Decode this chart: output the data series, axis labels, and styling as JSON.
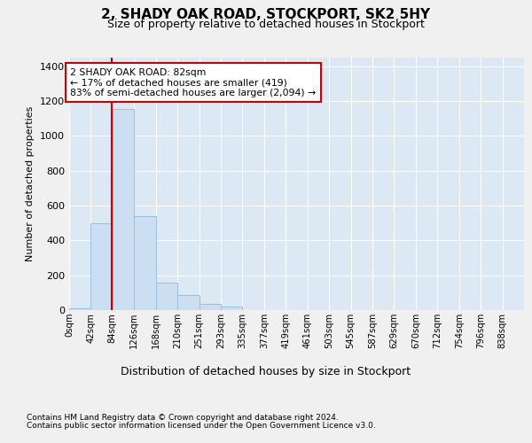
{
  "title1": "2, SHADY OAK ROAD, STOCKPORT, SK2 5HY",
  "title2": "Size of property relative to detached houses in Stockport",
  "xlabel": "Distribution of detached houses by size in Stockport",
  "ylabel": "Number of detached properties",
  "footnote1": "Contains HM Land Registry data © Crown copyright and database right 2024.",
  "footnote2": "Contains public sector information licensed under the Open Government Licence v3.0.",
  "bar_labels": [
    "0sqm",
    "42sqm",
    "84sqm",
    "126sqm",
    "168sqm",
    "210sqm",
    "251sqm",
    "293sqm",
    "335sqm",
    "377sqm",
    "419sqm",
    "461sqm",
    "503sqm",
    "545sqm",
    "587sqm",
    "629sqm",
    "670sqm",
    "712sqm",
    "754sqm",
    "796sqm",
    "838sqm"
  ],
  "bar_values": [
    10,
    500,
    1155,
    540,
    160,
    85,
    38,
    22,
    0,
    0,
    0,
    0,
    0,
    0,
    0,
    0,
    0,
    0,
    0,
    0,
    0
  ],
  "bar_color": "#ccdff2",
  "bar_edge_color": "#9bbfdc",
  "property_sqm": 82,
  "bin_width": 42,
  "ylim_max": 1450,
  "yticks": [
    0,
    200,
    400,
    600,
    800,
    1000,
    1200,
    1400
  ],
  "annot_text": "2 SHADY OAK ROAD: 82sqm\n← 17% of detached houses are smaller (419)\n83% of semi-detached houses are larger (2,094) →",
  "red_line_color": "#cc0000",
  "plot_bg": "#dde8f5",
  "fig_bg": "#f0f0f0",
  "grid_color": "#ffffff",
  "annot_border": "#cc0000",
  "annot_bg": "#ffffff"
}
